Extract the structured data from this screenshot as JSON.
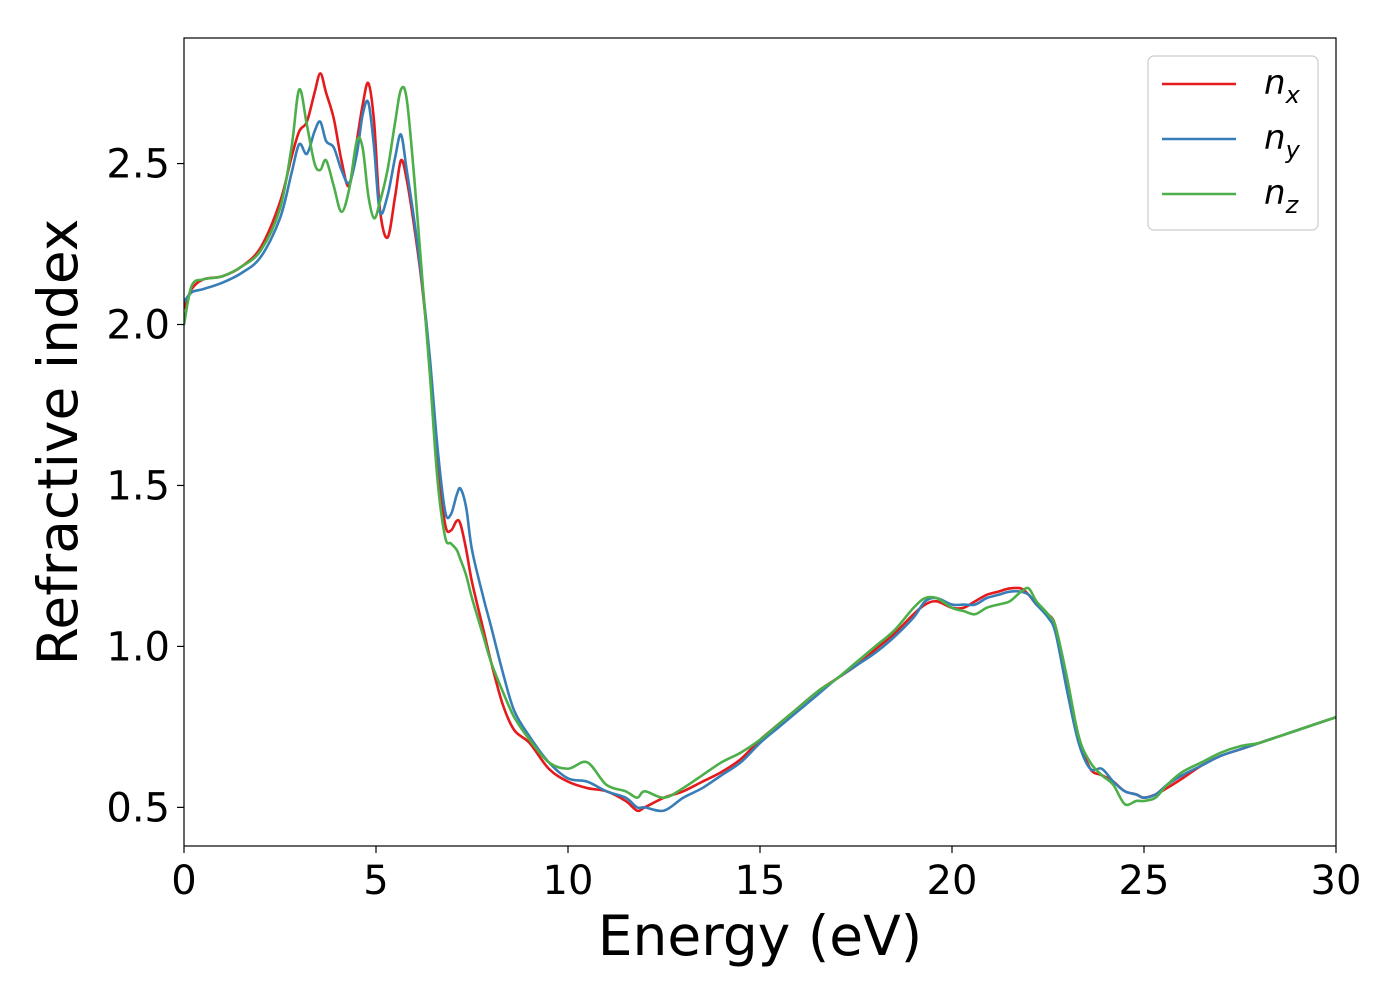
{
  "chart_data": {
    "type": "line",
    "title": "",
    "xlabel": "Energy (eV)",
    "ylabel": "Refractive index",
    "xlim": [
      0,
      30
    ],
    "ylim": [
      0.38,
      2.89
    ],
    "x_ticks": [
      0,
      5,
      10,
      15,
      20,
      25,
      30
    ],
    "x_tick_labels": [
      "0",
      "5",
      "10",
      "15",
      "20",
      "25",
      "30"
    ],
    "y_ticks": [
      0.5,
      1.0,
      1.5,
      2.0,
      2.5
    ],
    "y_tick_labels": [
      "0.5",
      "1.0",
      "1.5",
      "2.0",
      "2.5"
    ],
    "grid": false,
    "legend_position": "top-right",
    "series": [
      {
        "name": "n",
        "subscript": "x",
        "color": "#e41a1c",
        "x": [
          0,
          0.2,
          0.5,
          1,
          1.5,
          2,
          2.5,
          2.8,
          3,
          3.2,
          3.4,
          3.55,
          3.7,
          3.9,
          4.1,
          4.3,
          4.5,
          4.65,
          4.8,
          4.95,
          5.1,
          5.3,
          5.5,
          5.65,
          5.8,
          6,
          6.2,
          6.4,
          6.6,
          6.8,
          6.95,
          7.1,
          7.2,
          7.35,
          7.5,
          7.8,
          8,
          8.3,
          8.6,
          9,
          9.5,
          10,
          10.5,
          11,
          11.5,
          11.8,
          12,
          12.5,
          13,
          13.5,
          14,
          14.5,
          15,
          15.5,
          16,
          16.5,
          17,
          17.5,
          18,
          18.5,
          19,
          19.3,
          19.6,
          20,
          20.3,
          20.6,
          20.9,
          21.2,
          21.5,
          21.8,
          22,
          22.2,
          22.5,
          22.7,
          23,
          23.3,
          23.6,
          23.9,
          24.2,
          24.5,
          24.8,
          25,
          25.3,
          25.6,
          26,
          26.5,
          27,
          27.5,
          28,
          28.5,
          29,
          29.5,
          30
        ],
        "y": [
          2.05,
          2.11,
          2.14,
          2.15,
          2.18,
          2.24,
          2.38,
          2.52,
          2.6,
          2.63,
          2.72,
          2.78,
          2.72,
          2.64,
          2.51,
          2.43,
          2.57,
          2.68,
          2.75,
          2.63,
          2.36,
          2.27,
          2.4,
          2.51,
          2.45,
          2.3,
          2.12,
          1.88,
          1.58,
          1.38,
          1.36,
          1.39,
          1.38,
          1.3,
          1.2,
          1.05,
          0.95,
          0.82,
          0.74,
          0.7,
          0.62,
          0.58,
          0.56,
          0.55,
          0.52,
          0.49,
          0.5,
          0.53,
          0.55,
          0.58,
          0.61,
          0.65,
          0.71,
          0.76,
          0.81,
          0.86,
          0.9,
          0.94,
          0.99,
          1.04,
          1.1,
          1.13,
          1.14,
          1.12,
          1.12,
          1.14,
          1.16,
          1.17,
          1.18,
          1.18,
          1.16,
          1.13,
          1.1,
          1.06,
          0.88,
          0.72,
          0.62,
          0.6,
          0.58,
          0.55,
          0.54,
          0.53,
          0.54,
          0.56,
          0.59,
          0.63,
          0.66,
          0.68,
          0.7,
          0.72,
          0.74,
          0.76,
          0.78
        ]
      },
      {
        "name": "n",
        "subscript": "y",
        "color": "#377eb8",
        "x": [
          0,
          0.2,
          0.5,
          1,
          1.5,
          2,
          2.5,
          2.8,
          3,
          3.2,
          3.4,
          3.55,
          3.7,
          3.9,
          4.1,
          4.3,
          4.5,
          4.65,
          4.8,
          4.95,
          5.1,
          5.3,
          5.5,
          5.65,
          5.8,
          6,
          6.2,
          6.4,
          6.6,
          6.8,
          6.95,
          7.1,
          7.2,
          7.35,
          7.5,
          7.8,
          8,
          8.3,
          8.6,
          9,
          9.5,
          10,
          10.5,
          11,
          11.5,
          11.8,
          12,
          12.5,
          13,
          13.5,
          14,
          14.5,
          15,
          15.5,
          16,
          16.5,
          17,
          17.5,
          18,
          18.5,
          19,
          19.3,
          19.6,
          20,
          20.3,
          20.6,
          20.9,
          21.2,
          21.5,
          21.8,
          22,
          22.2,
          22.5,
          22.7,
          23,
          23.3,
          23.6,
          23.9,
          24.2,
          24.5,
          24.8,
          25,
          25.3,
          25.6,
          26,
          26.5,
          27,
          27.5,
          28,
          28.5,
          29,
          29.5,
          30
        ],
        "y": [
          2.07,
          2.1,
          2.11,
          2.13,
          2.16,
          2.21,
          2.33,
          2.47,
          2.56,
          2.53,
          2.6,
          2.63,
          2.57,
          2.55,
          2.48,
          2.44,
          2.53,
          2.65,
          2.69,
          2.55,
          2.35,
          2.4,
          2.52,
          2.59,
          2.48,
          2.32,
          2.13,
          1.9,
          1.62,
          1.42,
          1.41,
          1.47,
          1.49,
          1.43,
          1.3,
          1.15,
          1.06,
          0.92,
          0.8,
          0.72,
          0.64,
          0.59,
          0.58,
          0.55,
          0.53,
          0.5,
          0.5,
          0.49,
          0.53,
          0.56,
          0.6,
          0.64,
          0.7,
          0.75,
          0.8,
          0.85,
          0.9,
          0.94,
          0.98,
          1.03,
          1.09,
          1.14,
          1.15,
          1.13,
          1.13,
          1.13,
          1.15,
          1.16,
          1.17,
          1.17,
          1.16,
          1.13,
          1.09,
          1.04,
          0.86,
          0.7,
          0.62,
          0.62,
          0.58,
          0.55,
          0.54,
          0.53,
          0.54,
          0.57,
          0.6,
          0.63,
          0.66,
          0.68,
          0.7,
          0.72,
          0.74,
          0.76,
          0.78
        ]
      },
      {
        "name": "n",
        "subscript": "z",
        "color": "#4daf4a",
        "x": [
          0,
          0.2,
          0.5,
          1,
          1.5,
          2,
          2.5,
          2.8,
          3,
          3.2,
          3.4,
          3.55,
          3.7,
          3.9,
          4.1,
          4.3,
          4.5,
          4.65,
          4.8,
          4.95,
          5.1,
          5.3,
          5.5,
          5.65,
          5.8,
          6,
          6.2,
          6.4,
          6.6,
          6.8,
          6.95,
          7.1,
          7.2,
          7.35,
          7.5,
          7.8,
          8,
          8.3,
          8.6,
          9,
          9.5,
          10,
          10.5,
          11,
          11.5,
          11.8,
          12,
          12.5,
          13,
          13.5,
          14,
          14.5,
          15,
          15.5,
          16,
          16.5,
          17,
          17.5,
          18,
          18.5,
          19,
          19.3,
          19.6,
          20,
          20.3,
          20.6,
          20.9,
          21.2,
          21.5,
          21.8,
          22,
          22.2,
          22.5,
          22.7,
          23,
          23.3,
          23.6,
          23.9,
          24.2,
          24.5,
          24.8,
          25,
          25.3,
          25.6,
          26,
          26.5,
          27,
          27.5,
          28,
          28.5,
          29,
          29.5,
          30
        ],
        "y": [
          2.0,
          2.12,
          2.14,
          2.15,
          2.18,
          2.23,
          2.36,
          2.55,
          2.73,
          2.62,
          2.5,
          2.48,
          2.51,
          2.43,
          2.35,
          2.42,
          2.57,
          2.55,
          2.4,
          2.33,
          2.38,
          2.48,
          2.63,
          2.73,
          2.7,
          2.45,
          2.15,
          1.85,
          1.52,
          1.34,
          1.32,
          1.3,
          1.27,
          1.22,
          1.15,
          1.03,
          0.95,
          0.86,
          0.78,
          0.71,
          0.64,
          0.62,
          0.64,
          0.57,
          0.55,
          0.53,
          0.55,
          0.53,
          0.56,
          0.6,
          0.64,
          0.67,
          0.71,
          0.76,
          0.81,
          0.86,
          0.9,
          0.95,
          1.0,
          1.05,
          1.12,
          1.15,
          1.15,
          1.12,
          1.11,
          1.1,
          1.12,
          1.13,
          1.14,
          1.17,
          1.18,
          1.14,
          1.1,
          1.06,
          0.9,
          0.72,
          0.64,
          0.6,
          0.57,
          0.51,
          0.52,
          0.52,
          0.53,
          0.57,
          0.61,
          0.64,
          0.67,
          0.69,
          0.7,
          0.72,
          0.74,
          0.76,
          0.78
        ]
      }
    ]
  }
}
